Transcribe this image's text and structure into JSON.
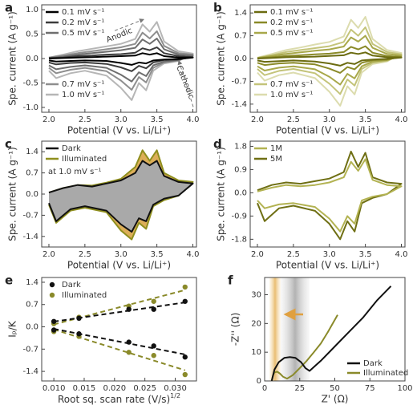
{
  "chart_data": [
    {
      "type": "line",
      "label": "a",
      "xlabel": "Potential (V vs. Li/Li⁺)",
      "ylabel": "Spe. current (A g⁻¹)",
      "xlim": [
        1.9,
        4.05
      ],
      "ylim": [
        -1.1,
        1.1
      ],
      "xticks": [
        {
          "value": 2,
          "label": "2.0"
        },
        2.5,
        {
          "value": 3,
          "label": "3.0"
        },
        3.5,
        {
          "value": 4,
          "label": "4.0"
        }
      ],
      "yticks": [
        {
          "value": -1,
          "label": "-1.0"
        },
        -0.5,
        {
          "value": 0,
          "label": "0.0"
        },
        0.5,
        {
          "value": 1,
          "label": "1.0"
        }
      ],
      "legend": "left",
      "annotations": [
        "Anodic",
        "Cathodic"
      ],
      "x": [
        2.0,
        2.2,
        2.4,
        2.6,
        2.8,
        3.0,
        3.2,
        3.3,
        3.4,
        3.5,
        3.6,
        3.8,
        4.0,
        3.8,
        3.6,
        3.45,
        3.35,
        3.25,
        3.15,
        3.0,
        2.8,
        2.5,
        2.3,
        2.1,
        2.0
      ],
      "series": [
        {
          "name": "0.1 mV s⁻¹",
          "color": "#000000",
          "values": [
            0,
            0.01,
            0.02,
            0.03,
            0.04,
            0.05,
            0.06,
            0.11,
            0.08,
            0.11,
            0.05,
            0.02,
            0.02,
            -0.01,
            -0.02,
            -0.04,
            -0.1,
            -0.08,
            -0.13,
            -0.09,
            -0.05,
            -0.04,
            -0.05,
            -0.06,
            -0.04
          ]
        },
        {
          "name": "0.2 mV s⁻¹",
          "color": "#3c3c3c",
          "values": [
            0.01,
            0.02,
            0.05,
            0.06,
            0.08,
            0.09,
            0.12,
            0.21,
            0.17,
            0.23,
            0.11,
            0.05,
            0.03,
            -0.02,
            -0.03,
            -0.08,
            -0.2,
            -0.15,
            -0.26,
            -0.18,
            -0.11,
            -0.08,
            -0.09,
            -0.12,
            -0.08
          ]
        },
        {
          "name": "0.5 mV s⁻¹",
          "color": "#6e6e6e",
          "values": [
            0.01,
            0.04,
            0.08,
            0.11,
            0.14,
            0.17,
            0.22,
            0.39,
            0.3,
            0.41,
            0.19,
            0.08,
            0.06,
            -0.03,
            -0.06,
            -0.14,
            -0.36,
            -0.28,
            -0.47,
            -0.33,
            -0.19,
            -0.14,
            -0.17,
            -0.22,
            -0.14
          ]
        },
        {
          "name": "0.7 mV s⁻¹",
          "color": "#8e8e8e",
          "values": [
            0.02,
            0.06,
            0.11,
            0.15,
            0.19,
            0.23,
            0.3,
            0.53,
            0.41,
            0.56,
            0.26,
            0.11,
            0.08,
            -0.04,
            -0.08,
            -0.19,
            -0.49,
            -0.38,
            -0.64,
            -0.45,
            -0.26,
            -0.19,
            -0.23,
            -0.3,
            -0.19
          ]
        },
        {
          "name": "1.0 mV s⁻¹",
          "color": "#b6b6b6",
          "values": [
            0.02,
            0.08,
            0.15,
            0.2,
            0.25,
            0.3,
            0.4,
            0.7,
            0.55,
            0.75,
            0.35,
            0.15,
            0.1,
            -0.05,
            -0.1,
            -0.25,
            -0.65,
            -0.5,
            -0.85,
            -0.6,
            -0.35,
            -0.25,
            -0.3,
            -0.4,
            -0.25
          ]
        }
      ]
    },
    {
      "type": "line",
      "label": "b",
      "xlabel": "Potential (V vs. Li/Li⁺)",
      "ylabel": "Spe. current (A g⁻¹)",
      "xlim": [
        1.9,
        4.05
      ],
      "ylim": [
        -1.65,
        1.65
      ],
      "xticks": [
        {
          "value": 2,
          "label": "2.0"
        },
        2.5,
        {
          "value": 3,
          "label": "3.0"
        },
        3.5,
        {
          "value": 4,
          "label": "4.0"
        }
      ],
      "yticks": [
        -1.4,
        -0.7,
        {
          "value": 0,
          "label": "0.0"
        },
        0.7,
        1.4
      ],
      "legend": "left",
      "x": [
        2.0,
        2.2,
        2.4,
        2.6,
        2.8,
        3.0,
        3.2,
        3.3,
        3.4,
        3.5,
        3.6,
        3.8,
        4.0,
        3.8,
        3.6,
        3.45,
        3.35,
        3.25,
        3.15,
        3.0,
        2.8,
        2.5,
        2.3,
        2.1,
        2.0
      ],
      "series": [
        {
          "name": "0.1 mV s⁻¹",
          "color": "#6b6b10",
          "values": [
            0,
            0.02,
            0.04,
            0.05,
            0.06,
            0.08,
            0.1,
            0.18,
            0.14,
            0.19,
            0.09,
            0.04,
            0.03,
            -0.01,
            -0.03,
            -0.06,
            -0.17,
            -0.13,
            -0.22,
            -0.15,
            -0.09,
            -0.06,
            -0.08,
            -0.1,
            -0.06
          ]
        },
        {
          "name": "0.2 mV s⁻¹",
          "color": "#8a8a28",
          "values": [
            0.01,
            0.04,
            0.08,
            0.1,
            0.13,
            0.15,
            0.2,
            0.36,
            0.28,
            0.38,
            0.18,
            0.08,
            0.05,
            -0.03,
            -0.05,
            -0.13,
            -0.33,
            -0.26,
            -0.44,
            -0.31,
            -0.18,
            -0.13,
            -0.15,
            -0.2,
            -0.13
          ]
        },
        {
          "name": "0.5 mV s⁻¹",
          "color": "#a8a84a",
          "values": [
            0.02,
            0.08,
            0.14,
            0.19,
            0.24,
            0.28,
            0.37,
            0.65,
            0.52,
            0.7,
            0.33,
            0.14,
            0.09,
            -0.05,
            -0.09,
            -0.24,
            -0.61,
            -0.47,
            -0.8,
            -0.56,
            -0.33,
            -0.24,
            -0.28,
            -0.37,
            -0.24
          ]
        },
        {
          "name": "0.7 mV s⁻¹",
          "color": "#c4c47a",
          "values": [
            0.02,
            0.1,
            0.2,
            0.26,
            0.32,
            0.38,
            0.51,
            0.89,
            0.7,
            0.96,
            0.45,
            0.2,
            0.13,
            -0.07,
            -0.13,
            -0.32,
            -0.83,
            -0.64,
            -1.09,
            -0.77,
            -0.45,
            -0.32,
            -0.38,
            -0.51,
            -0.32
          ]
        },
        {
          "name": "1.0 mV s⁻¹",
          "color": "#dcdcae",
          "values": [
            0.03,
            0.14,
            0.26,
            0.34,
            0.43,
            0.51,
            0.68,
            1.19,
            0.94,
            1.28,
            0.6,
            0.26,
            0.17,
            -0.09,
            -0.17,
            -0.43,
            -1.1,
            -0.85,
            -1.45,
            -1.02,
            -0.6,
            -0.43,
            -0.51,
            -0.68,
            -0.43
          ]
        }
      ]
    },
    {
      "type": "line",
      "label": "c",
      "xlabel": "Potential (V vs. Li/Li⁺)",
      "ylabel": "Spe. current (A g⁻¹)",
      "xlim": [
        1.9,
        4.05
      ],
      "ylim": [
        -1.75,
        1.75
      ],
      "xticks": [
        {
          "value": 2,
          "label": "2.0"
        },
        2.5,
        {
          "value": 3,
          "label": "3.0"
        },
        3.5,
        {
          "value": 4,
          "label": "4.0"
        }
      ],
      "yticks": [
        -1.4,
        -0.7,
        {
          "value": 0,
          "label": "0.0"
        },
        0.7,
        1.4
      ],
      "legend": "upper left",
      "annotations": [
        "at 1.0 mV s⁻¹"
      ],
      "x": [
        2.0,
        2.2,
        2.4,
        2.6,
        2.8,
        3.0,
        3.2,
        3.3,
        3.4,
        3.5,
        3.6,
        3.8,
        4.0,
        3.8,
        3.6,
        3.45,
        3.35,
        3.25,
        3.15,
        3.0,
        2.8,
        2.5,
        2.3,
        2.1,
        2.0
      ],
      "series": [
        {
          "name": "Dark",
          "color": "#111111",
          "fill": "#a9a9a9",
          "values": [
            0.05,
            0.2,
            0.3,
            0.25,
            0.35,
            0.45,
            0.7,
            1.1,
            0.95,
            1.1,
            0.6,
            0.4,
            0.35,
            -0.05,
            -0.15,
            -0.35,
            -0.9,
            -0.8,
            -1.25,
            -1.0,
            -0.55,
            -0.4,
            -0.5,
            -0.9,
            -0.3
          ]
        },
        {
          "name": "Illuminated",
          "color": "#8f8f1e",
          "fill": "#dcae58",
          "values": [
            0.05,
            0.2,
            0.3,
            0.28,
            0.38,
            0.5,
            0.9,
            1.45,
            1.1,
            1.45,
            0.7,
            0.45,
            0.4,
            -0.05,
            -0.2,
            -0.4,
            -1.15,
            -0.95,
            -1.5,
            -1.2,
            -0.6,
            -0.45,
            -0.55,
            -0.95,
            -0.35
          ]
        }
      ]
    },
    {
      "type": "line",
      "label": "d",
      "xlabel": "Potential (V vs. Li/Li⁺)",
      "ylabel": "Spe. current (A g⁻¹)",
      "xlim": [
        1.9,
        4.05
      ],
      "ylim": [
        -2.1,
        2.0
      ],
      "xticks": [
        {
          "value": 2,
          "label": "2.0"
        },
        2.5,
        {
          "value": 3,
          "label": "3.0"
        },
        3.5,
        {
          "value": 4,
          "label": "4.0"
        }
      ],
      "yticks": [
        -1.8,
        -0.9,
        {
          "value": 0,
          "label": "0.0"
        },
        0.9,
        1.8
      ],
      "legend": "upper left",
      "x": [
        2.0,
        2.2,
        2.4,
        2.6,
        2.8,
        3.0,
        3.2,
        3.3,
        3.4,
        3.5,
        3.6,
        3.8,
        4.0,
        3.8,
        3.6,
        3.45,
        3.35,
        3.25,
        3.15,
        3.0,
        2.8,
        2.5,
        2.3,
        2.1,
        2.0
      ],
      "series": [
        {
          "name": "1M",
          "color": "#b3b352",
          "values": [
            0.05,
            0.2,
            0.3,
            0.25,
            0.3,
            0.4,
            0.6,
            1.2,
            0.85,
            1.3,
            0.5,
            0.3,
            0.25,
            -0.05,
            -0.15,
            -0.3,
            -1.2,
            -0.9,
            -1.5,
            -1.0,
            -0.55,
            -0.4,
            -0.45,
            -0.6,
            -0.3
          ]
        },
        {
          "name": "5M",
          "color": "#6f6f14",
          "values": [
            0.1,
            0.3,
            0.4,
            0.35,
            0.45,
            0.55,
            0.8,
            1.6,
            1.0,
            1.55,
            0.6,
            0.4,
            0.35,
            -0.05,
            -0.2,
            -0.4,
            -1.5,
            -1.1,
            -1.8,
            -1.2,
            -0.7,
            -0.5,
            -0.6,
            -1.1,
            -0.4
          ]
        }
      ]
    },
    {
      "type": "scatter",
      "label": "e",
      "xlabel": [
        "Root sq. scan rate (V/s)",
        "1/2"
      ],
      "ylabel": "Iₚ/K",
      "xlim": [
        0.008,
        0.0335
      ],
      "ylim": [
        -1.7,
        1.55
      ],
      "xticks": [
        {
          "value": 0.01,
          "label": "0.010"
        },
        0.015,
        {
          "value": 0.02,
          "label": "0.020"
        },
        0.025,
        {
          "value": 0.03,
          "label": "0.030"
        }
      ],
      "yticks": [
        -1.4,
        -0.7,
        {
          "value": 0,
          "label": "0.0"
        },
        0.7,
        1.4
      ],
      "legend": "upper left",
      "series": [
        {
          "name": "Dark",
          "color": "#111111",
          "x": [
            0.01,
            0.01414,
            0.02236,
            0.02646,
            0.03162,
            0.01,
            0.01414,
            0.02236,
            0.02646,
            0.03162
          ],
          "values": [
            0.17,
            0.27,
            0.55,
            0.55,
            0.8,
            -0.1,
            -0.22,
            -0.48,
            -0.6,
            -0.95
          ]
        },
        {
          "name": "Illuminated",
          "color": "#8a8a2a",
          "x": [
            0.01,
            0.01414,
            0.02236,
            0.02646,
            0.03162,
            0.01,
            0.01414,
            0.02236,
            0.02646,
            0.03162
          ],
          "values": [
            0.1,
            0.3,
            0.65,
            0.8,
            1.25,
            -0.15,
            -0.3,
            -0.8,
            -0.9,
            -1.5
          ]
        }
      ]
    },
    {
      "type": "line",
      "label": "f",
      "xlabel": "Z' (Ω)",
      "ylabel": "-Z'' (Ω)",
      "xlim": [
        0,
        100
      ],
      "ylim": [
        0,
        36
      ],
      "xticks": [
        0,
        25,
        50,
        75,
        100
      ],
      "yticks": [
        0,
        10,
        20,
        30
      ],
      "legend": "lower right",
      "series": [
        {
          "name": "Dark",
          "color": "#111111",
          "x": [
            5,
            7,
            10,
            14,
            18,
            22,
            26,
            29,
            32,
            40,
            50,
            60,
            70,
            80,
            90
          ],
          "values": [
            0,
            4,
            6.5,
            8,
            8.3,
            8,
            6.5,
            4.5,
            3.5,
            7,
            12,
            17,
            22,
            28,
            33
          ]
        },
        {
          "name": "Illuminated",
          "color": "#8a8a2a",
          "x": [
            5,
            6,
            7,
            9,
            11,
            13,
            16,
            20,
            25,
            30,
            35,
            40,
            45,
            52
          ],
          "values": [
            0,
            2,
            3,
            3.2,
            2.5,
            1.5,
            0.8,
            2,
            4.5,
            7,
            10,
            13,
            17,
            23
          ]
        }
      ]
    }
  ]
}
